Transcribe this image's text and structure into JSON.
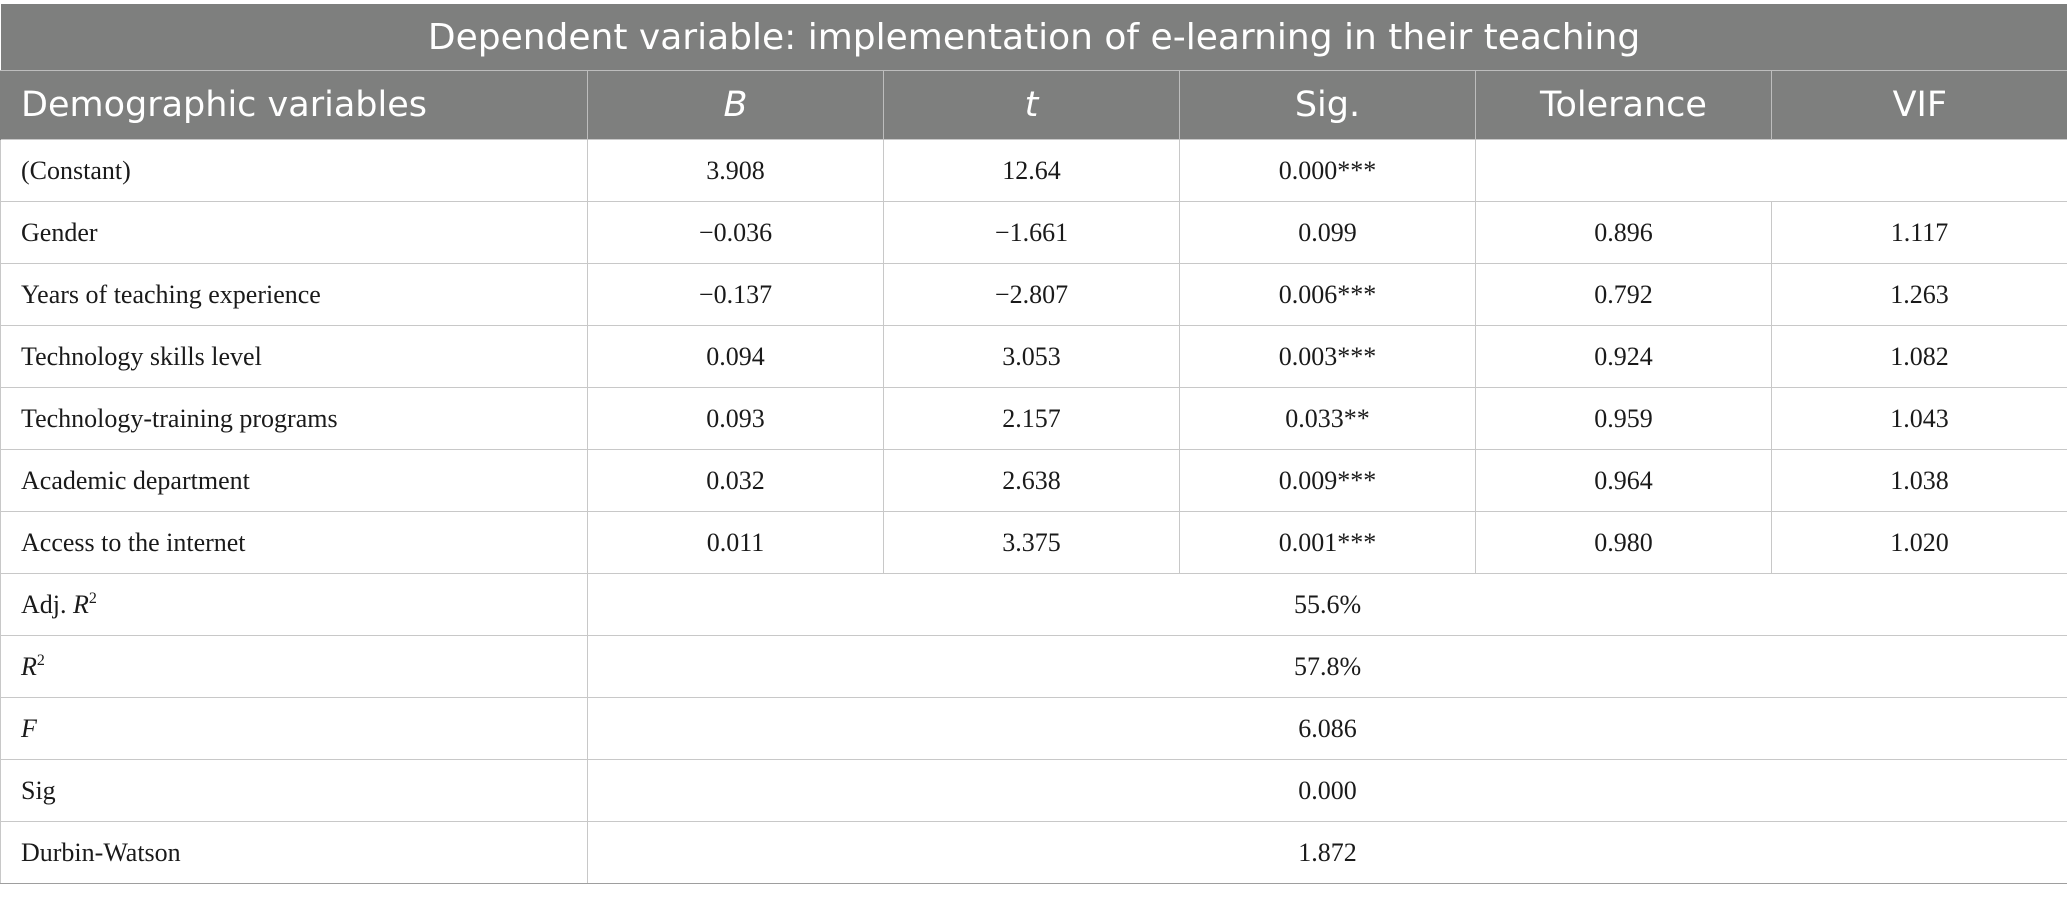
{
  "title": "Dependent variable: implementation of e-learning in their teaching",
  "headers": {
    "demographic": "Demographic variables",
    "b": "B",
    "t": "t",
    "sig": "Sig.",
    "tolerance": "Tolerance",
    "vif": "VIF"
  },
  "rows": [
    {
      "label": "(Constant)",
      "b": "3.908",
      "t": "12.64",
      "sig": "0.000***",
      "tolerance": "",
      "vif": ""
    },
    {
      "label": "Gender",
      "b": "−0.036",
      "t": "−1.661",
      "sig": "0.099",
      "tolerance": "0.896",
      "vif": "1.117"
    },
    {
      "label": "Years of teaching experience",
      "b": "−0.137",
      "t": "−2.807",
      "sig": "0.006***",
      "tolerance": "0.792",
      "vif": "1.263"
    },
    {
      "label": "Technology skills level",
      "b": "0.094",
      "t": "3.053",
      "sig": "0.003***",
      "tolerance": "0.924",
      "vif": "1.082"
    },
    {
      "label": "Technology-training programs",
      "b": "0.093",
      "t": "2.157",
      "sig": "0.033**",
      "tolerance": "0.959",
      "vif": "1.043"
    },
    {
      "label": "Academic department",
      "b": "0.032",
      "t": "2.638",
      "sig": "0.009***",
      "tolerance": "0.964",
      "vif": "1.038"
    },
    {
      "label": "Access to the internet",
      "b": "0.011",
      "t": "3.375",
      "sig": "0.001***",
      "tolerance": "0.980",
      "vif": "1.020"
    }
  ],
  "summary": {
    "adj_r2": {
      "label_prefix": "Adj. ",
      "label_var": "R",
      "label_sup": "2",
      "value": "55.6%"
    },
    "r2": {
      "label_var": "R",
      "label_sup": "2",
      "value": "57.8%"
    },
    "f": {
      "label_var": "F",
      "value": "6.086"
    },
    "sig": {
      "label": "Sig",
      "value": "0.000"
    },
    "durbin_watson": {
      "label": "Durbin-Watson",
      "value": "1.872"
    }
  }
}
